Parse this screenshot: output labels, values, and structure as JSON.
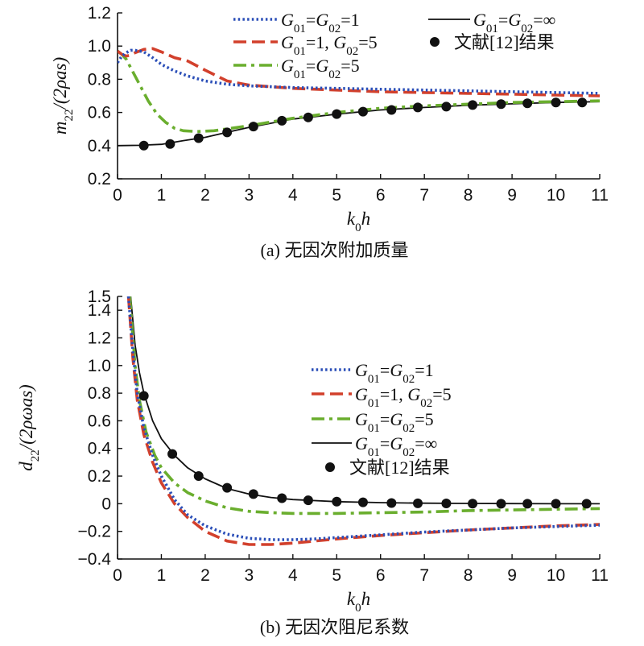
{
  "chart_data": [
    {
      "type": "line",
      "title": "",
      "caption": "(a) 无因次附加质量",
      "xlabel": "k₀h",
      "ylabel": "m₂₂/(2ρas)",
      "xlim": [
        0,
        11
      ],
      "ylim": [
        0.2,
        1.2
      ],
      "xticks": [
        "0",
        "1",
        "2",
        "3",
        "4",
        "5",
        "6",
        "7",
        "8",
        "9",
        "10",
        "11"
      ],
      "yticks": [
        "0.2",
        "0.4",
        "0.6",
        "0.8",
        "1.0",
        "1.2"
      ],
      "legend": "top-right",
      "series": [
        {
          "name": "G₀₁=G₀₂=1",
          "style": "dotted",
          "color": "#2b4fb8",
          "x": [
            0,
            0.1,
            0.2,
            0.3,
            0.4,
            0.6,
            0.8,
            1.0,
            1.3,
            1.6,
            2.0,
            2.5,
            3.0,
            4.0,
            5.0,
            6.0,
            7.0,
            8.0,
            9.0,
            10.0,
            11.0
          ],
          "y": [
            0.9,
            0.94,
            0.96,
            0.975,
            0.975,
            0.965,
            0.93,
            0.89,
            0.85,
            0.82,
            0.79,
            0.77,
            0.76,
            0.75,
            0.745,
            0.74,
            0.735,
            0.73,
            0.725,
            0.72,
            0.715
          ]
        },
        {
          "name": "G₀₁=1, G₀₂=5",
          "style": "dashed",
          "color": "#d2402c",
          "x": [
            0,
            0.1,
            0.2,
            0.3,
            0.4,
            0.6,
            0.8,
            1.0,
            1.3,
            1.6,
            2.0,
            2.5,
            3.0,
            4.0,
            5.0,
            6.0,
            7.0,
            8.0,
            9.0,
            10.0,
            11.0
          ],
          "y": [
            0.97,
            0.95,
            0.94,
            0.945,
            0.96,
            0.98,
            0.985,
            0.965,
            0.93,
            0.91,
            0.855,
            0.79,
            0.765,
            0.745,
            0.735,
            0.725,
            0.72,
            0.715,
            0.71,
            0.705,
            0.7
          ]
        },
        {
          "name": "G₀₁=G₀₂=5",
          "style": "dashdot",
          "color": "#6aae2e",
          "x": [
            0,
            0.1,
            0.2,
            0.3,
            0.5,
            0.7,
            0.9,
            1.1,
            1.3,
            1.5,
            1.8,
            2.2,
            2.6,
            3.0,
            4.0,
            5.0,
            6.0,
            7.0,
            8.0,
            9.0,
            10.0,
            11.0
          ],
          "y": [
            0.97,
            0.95,
            0.92,
            0.87,
            0.77,
            0.67,
            0.59,
            0.54,
            0.505,
            0.49,
            0.485,
            0.49,
            0.505,
            0.52,
            0.565,
            0.6,
            0.625,
            0.64,
            0.65,
            0.66,
            0.665,
            0.67
          ]
        },
        {
          "name": "G₀₁=G₀₂=∞",
          "style": "solid",
          "color": "#111111",
          "x": [
            0,
            0.5,
            1.0,
            1.5,
            2.0,
            2.5,
            3.0,
            3.5,
            4.0,
            4.5,
            5.0,
            6.0,
            7.0,
            8.0,
            9.0,
            10.0,
            11.0
          ],
          "y": [
            0.4,
            0.402,
            0.408,
            0.43,
            0.45,
            0.48,
            0.51,
            0.535,
            0.56,
            0.575,
            0.59,
            0.615,
            0.63,
            0.643,
            0.652,
            0.66,
            0.665
          ]
        },
        {
          "name": "文献[12]结果",
          "style": "markers",
          "color": "#111111",
          "x": [
            0.6,
            1.2,
            1.85,
            2.5,
            3.1,
            3.75,
            4.35,
            5.0,
            5.6,
            6.25,
            6.85,
            7.5,
            8.1,
            8.75,
            9.35,
            10.0,
            10.6
          ],
          "y": [
            0.4,
            0.41,
            0.445,
            0.48,
            0.515,
            0.55,
            0.57,
            0.59,
            0.605,
            0.615,
            0.63,
            0.635,
            0.645,
            0.65,
            0.655,
            0.66,
            0.66
          ]
        }
      ]
    },
    {
      "type": "line",
      "title": "",
      "caption": "(b) 无因次阻尼系数",
      "xlabel": "k₀h",
      "ylabel": "d₂₂/(2ρωas)",
      "xlim": [
        0,
        11
      ],
      "ylim": [
        -0.4,
        1.5
      ],
      "xticks": [
        "0",
        "1",
        "2",
        "3",
        "4",
        "5",
        "6",
        "7",
        "8",
        "9",
        "10",
        "11"
      ],
      "yticks": [
        "−0.4",
        "−0.2",
        "0",
        "0.2",
        "0.4",
        "0.6",
        "0.8",
        "1.0",
        "1.2",
        "1.4",
        "1.5"
      ],
      "legend": "center-right",
      "series": [
        {
          "name": "G₀₁=G₀₂=1",
          "style": "dotted",
          "color": "#2b4fb8",
          "x": [
            0.25,
            0.35,
            0.45,
            0.6,
            0.8,
            1.0,
            1.3,
            1.6,
            2.0,
            2.5,
            3.0,
            3.5,
            4.0,
            4.5,
            5.0,
            6.0,
            7.0,
            8.0,
            9.0,
            10.0,
            11.0
          ],
          "y": [
            1.5,
            1.1,
            0.8,
            0.55,
            0.35,
            0.2,
            0.03,
            -0.08,
            -0.16,
            -0.22,
            -0.25,
            -0.26,
            -0.26,
            -0.255,
            -0.245,
            -0.225,
            -0.205,
            -0.19,
            -0.175,
            -0.165,
            -0.155
          ]
        },
        {
          "name": "G₀₁=1, G₀₂=5",
          "style": "dashed",
          "color": "#d2402c",
          "x": [
            0.25,
            0.35,
            0.45,
            0.6,
            0.8,
            1.0,
            1.3,
            1.6,
            2.0,
            2.5,
            3.0,
            3.5,
            4.0,
            4.5,
            5.0,
            6.0,
            7.0,
            8.0,
            9.0,
            10.0,
            11.0
          ],
          "y": [
            1.5,
            1.05,
            0.75,
            0.5,
            0.3,
            0.15,
            0.0,
            -0.1,
            -0.2,
            -0.27,
            -0.295,
            -0.295,
            -0.285,
            -0.27,
            -0.255,
            -0.23,
            -0.21,
            -0.19,
            -0.175,
            -0.16,
            -0.15
          ]
        },
        {
          "name": "G₀₁=G₀₂=5",
          "style": "dashdot",
          "color": "#6aae2e",
          "x": [
            0.28,
            0.4,
            0.5,
            0.65,
            0.85,
            1.0,
            1.3,
            1.6,
            2.0,
            2.5,
            3.0,
            3.5,
            4.0,
            5.0,
            6.0,
            7.0,
            8.0,
            9.0,
            10.0,
            11.0
          ],
          "y": [
            1.5,
            1.0,
            0.75,
            0.52,
            0.35,
            0.26,
            0.15,
            0.08,
            0.02,
            -0.03,
            -0.055,
            -0.065,
            -0.07,
            -0.07,
            -0.065,
            -0.06,
            -0.05,
            -0.045,
            -0.04,
            -0.035
          ]
        },
        {
          "name": "G₀₁=G₀₂=∞",
          "style": "solid",
          "color": "#111111",
          "x": [
            0.3,
            0.4,
            0.5,
            0.6,
            0.8,
            1.0,
            1.3,
            1.6,
            2.0,
            2.5,
            3.0,
            3.5,
            4.0,
            5.0,
            6.0,
            7.0,
            8.0,
            9.0,
            10.0,
            11.0
          ],
          "y": [
            1.5,
            1.15,
            0.95,
            0.8,
            0.6,
            0.47,
            0.35,
            0.26,
            0.18,
            0.11,
            0.07,
            0.045,
            0.03,
            0.015,
            0.008,
            0.004,
            0.002,
            0.001,
            0.0,
            0.0
          ]
        },
        {
          "name": "文献[12]结果",
          "style": "markers",
          "color": "#111111",
          "x": [
            0.6,
            1.25,
            1.85,
            2.5,
            3.1,
            3.75,
            4.35,
            5.0,
            5.6,
            6.25,
            6.85,
            7.5,
            8.1,
            8.75,
            9.35,
            10.0,
            10.7
          ],
          "y": [
            0.78,
            0.36,
            0.2,
            0.115,
            0.07,
            0.04,
            0.025,
            0.015,
            0.01,
            0.005,
            0.003,
            0.002,
            0.001,
            0.0,
            0.0,
            0.0,
            0.0
          ]
        }
      ]
    }
  ]
}
